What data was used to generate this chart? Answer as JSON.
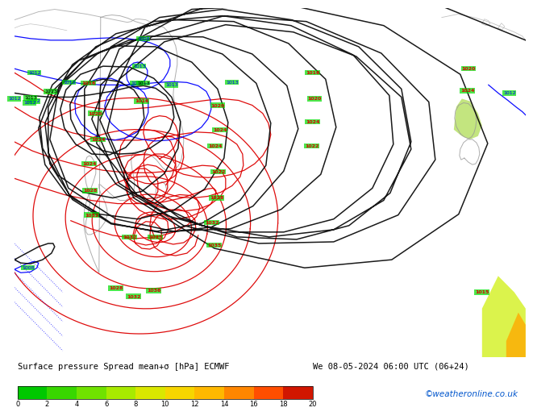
{
  "title_label": "Surface pressure Spread mean+σ [hPa] ECMWF",
  "date_label": "We 08-05-2024 06:00 UTC (06+24)",
  "credit": "©weatheronline.co.uk",
  "colorbar_min": 0,
  "colorbar_max": 20,
  "colorbar_ticks": [
    0,
    2,
    4,
    6,
    8,
    10,
    12,
    14,
    16,
    18,
    20
  ],
  "colorbar_colors": [
    "#00C800",
    "#33D600",
    "#66E000",
    "#99E800",
    "#CCEE00",
    "#EEDD00",
    "#FFCC00",
    "#FFAA00",
    "#FF7700",
    "#FF4400",
    "#CC1100",
    "#990000"
  ],
  "fig_width": 6.34,
  "fig_height": 4.9,
  "map_bg": "#00DD00",
  "label_fontsize": 8,
  "credit_fontsize": 8,
  "credit_color": "#0055CC",
  "blue_color": "#0000FF",
  "red_color": "#DD0000",
  "black_color": "#000000",
  "gray_color": "#999999"
}
